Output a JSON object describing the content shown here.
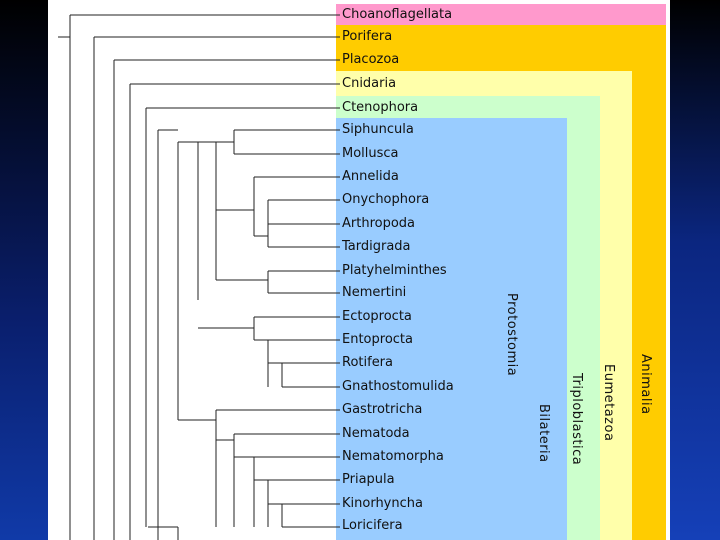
{
  "background": {
    "color": "#0c2a8a"
  },
  "taxa": [
    "Choanoflagellata",
    "Porifera",
    "Placozoa",
    "Cnidaria",
    "Ctenophora",
    "Siphuncula",
    "Mollusca",
    "Annelida",
    "Onychophora",
    "Arthropoda",
    "Tardigrada",
    "Platyhelminthes",
    "Nemertini",
    "Ectoprocta",
    "Entoprocta",
    "Rotifera",
    "Gnathostomulida",
    "Gastrotricha",
    "Nematoda",
    "Nematomorpha",
    "Priapula",
    "Kinorhyncha",
    "Loricifera"
  ],
  "groups": {
    "animalia": {
      "label": "Animalia",
      "color": "#ffcc00"
    },
    "eumetazoa": {
      "label": "Eumetazoa",
      "color": "#ffffaa"
    },
    "triploblastica": {
      "label": "Triploblastica",
      "color": "#ccffcc"
    },
    "bilateria": {
      "label": "Bilateria",
      "color": "#99ccff"
    },
    "protostomia": {
      "label": "Protostomia"
    },
    "choanoflagellata": {
      "color": "#ff99cc"
    }
  }
}
